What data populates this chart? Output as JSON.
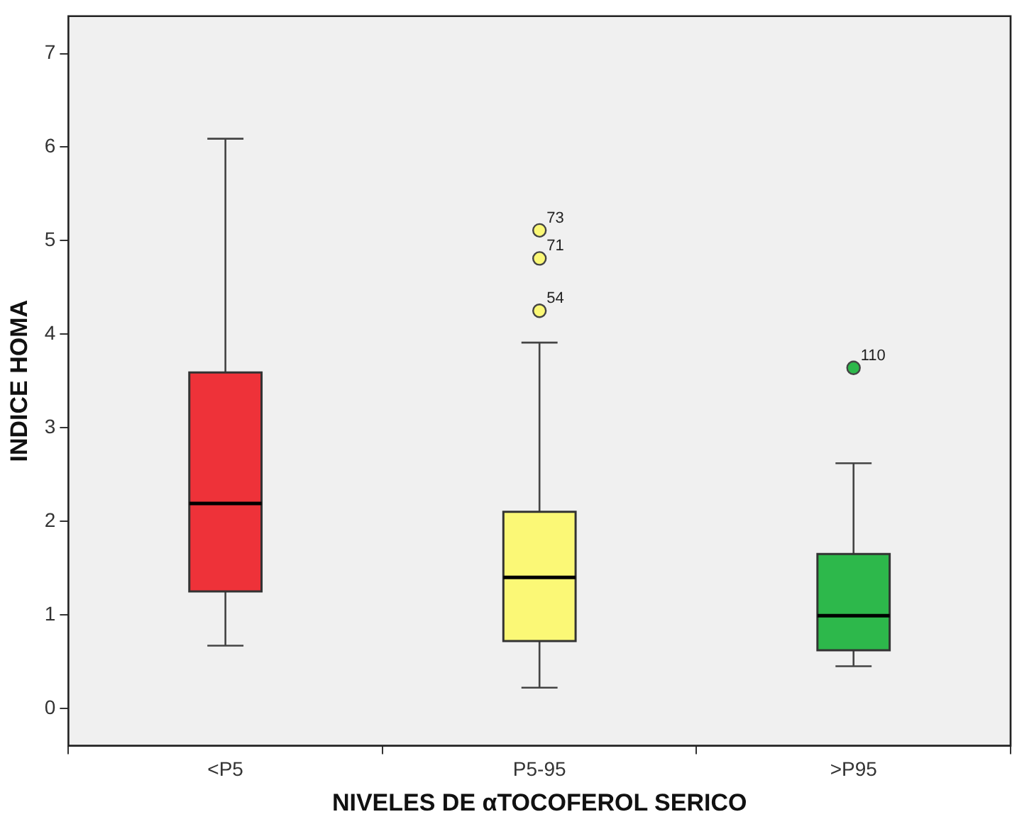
{
  "chart_data": {
    "type": "box",
    "xlabel": "NIVELES DE αTOCOFEROL SERICO",
    "ylabel": "INDICE HOMA",
    "categories": [
      "<P5",
      "P5-95",
      ">P95"
    ],
    "colors": [
      "#ee3239",
      "#fbf876",
      "#2db84b"
    ],
    "boxes": [
      {
        "low": 0.67,
        "q1": 1.25,
        "median": 2.19,
        "q3": 3.59,
        "high": 6.09
      },
      {
        "low": 0.22,
        "q1": 0.72,
        "median": 1.4,
        "q3": 2.1,
        "high": 3.91,
        "outliers": [
          5.11,
          4.81,
          4.25
        ]
      },
      {
        "low": 0.45,
        "q1": 0.62,
        "median": 0.99,
        "q3": 1.65,
        "high": 2.62,
        "outliers": [
          3.64
        ]
      }
    ],
    "ylim": [
      -0.4,
      7.4
    ],
    "yticks": [
      0,
      1,
      2,
      3,
      4,
      5,
      6,
      7
    ],
    "annotations": [
      "73",
      "71",
      "54",
      "110"
    ]
  }
}
